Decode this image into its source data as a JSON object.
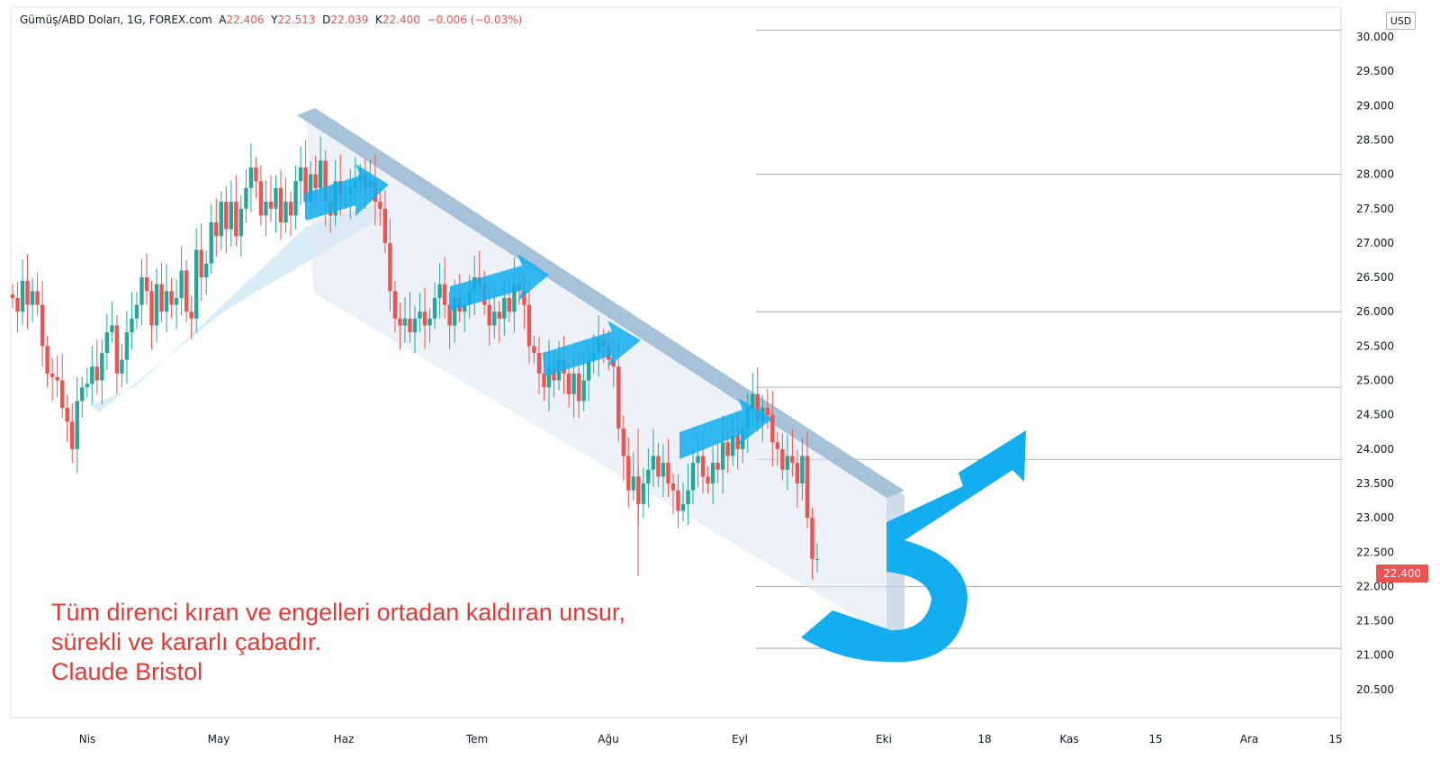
{
  "legend": {
    "symbol": "Gümüş/ABD Doları, 1G, FOREX.com",
    "open_label": "A",
    "open": "22.406",
    "high_label": "Y",
    "high": "22.513",
    "low_label": "D",
    "low": "22.039",
    "close_label": "K",
    "close": "22.400",
    "change": "−0.006 (−0.03%)"
  },
  "quote": {
    "line1": "Tüm direnci kıran ve engelleri ortadan kaldıran unsur,",
    "line2": "sürekli ve kararlı çabadır.",
    "line3": "Claude Bristol"
  },
  "axis": {
    "currency": "USD",
    "last_price": "22.400"
  },
  "colors": {
    "up": "#26a69a",
    "down": "#ef5350",
    "channel": "#9dbcd4",
    "arrow": "#12aef0",
    "quote": "#e53935"
  },
  "chart_data": {
    "type": "candlestick",
    "y_ticks": [
      "30.000",
      "29.500",
      "29.000",
      "28.500",
      "28.000",
      "27.500",
      "27.000",
      "26.500",
      "26.000",
      "25.500",
      "25.000",
      "24.500",
      "24.000",
      "23.500",
      "23.000",
      "22.500",
      "22.000",
      "21.500",
      "21.000",
      "20.500"
    ],
    "ylim": [
      20.2,
      30.25
    ],
    "x_ticks": [
      "Nis",
      "May",
      "Haz",
      "Tem",
      "Ağu",
      "Eyl",
      "Eki",
      "18",
      "Kas",
      "15",
      "Ara",
      "15"
    ],
    "horizontal_levels": [
      30.1,
      28.0,
      26.0,
      24.9,
      23.85,
      22.0,
      21.1
    ],
    "closes": [
      26.2,
      26.0,
      26.45,
      26.1,
      26.3,
      26.1,
      25.5,
      25.1,
      25.05,
      25.0,
      24.6,
      24.4,
      24.0,
      24.7,
      24.9,
      24.95,
      25.2,
      25.0,
      25.4,
      25.7,
      25.8,
      25.1,
      25.3,
      25.7,
      25.9,
      26.1,
      26.5,
      26.3,
      25.8,
      26.4,
      26.0,
      26.3,
      26.1,
      26.2,
      26.6,
      26.0,
      25.9,
      26.9,
      26.5,
      26.7,
      27.3,
      27.1,
      27.6,
      27.2,
      27.6,
      27.1,
      27.5,
      27.8,
      28.1,
      27.9,
      27.4,
      27.6,
      27.5,
      27.8,
      27.3,
      27.6,
      27.4,
      27.9,
      28.1,
      27.6,
      28.0,
      27.8,
      28.2,
      27.6,
      27.4,
      27.9,
      27.7,
      27.7,
      27.8,
      27.9,
      28.0,
      27.8,
      27.9,
      27.6,
      27.5,
      27.0,
      26.3,
      25.9,
      25.8,
      25.9,
      25.7,
      25.9,
      26.0,
      25.8,
      25.9,
      26.2,
      26.4,
      26.1,
      25.8,
      26.2,
      26.0,
      26.1,
      26.3,
      26.5,
      26.4,
      26.1,
      25.8,
      26.0,
      25.9,
      26.2,
      26.0,
      26.4,
      26.3,
      26.1,
      25.5,
      25.4,
      25.1,
      24.9,
      25.2,
      25.0,
      25.3,
      25.1,
      24.8,
      25.1,
      24.7,
      25.0,
      25.3,
      25.4,
      25.6,
      25.5,
      25.3,
      25.2,
      24.3,
      23.9,
      23.4,
      23.6,
      23.2,
      23.5,
      23.7,
      23.9,
      23.6,
      23.8,
      23.5,
      23.4,
      23.1,
      23.2,
      23.4,
      23.8,
      23.9,
      23.6,
      23.5,
      23.8,
      23.7,
      24.1,
      23.9,
      24.2,
      24.0,
      24.3,
      24.6,
      24.8,
      24.4,
      24.6,
      24.5,
      24.1,
      24.0,
      23.7,
      23.9,
      23.8,
      23.5,
      23.9,
      23.0,
      22.4,
      22.4
    ]
  }
}
